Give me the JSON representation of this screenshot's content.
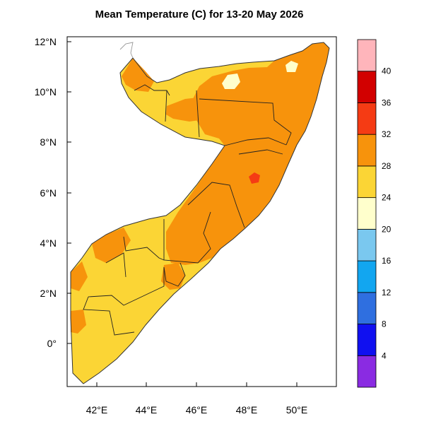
{
  "title": "Mean Temperature (C) for 13-20 May 2026",
  "map": {
    "lon_ticks": [
      "42°E",
      "44°E",
      "46°E",
      "48°E",
      "50°E"
    ],
    "lat_ticks": [
      "12°N",
      "10°N",
      "8°N",
      "6°N",
      "4°N",
      "2°N",
      "0°"
    ],
    "lon_range": [
      41,
      51.5
    ],
    "lat_range": [
      -1.6,
      12.2
    ]
  },
  "colorbar": {
    "bins": [
      {
        "color": "#8a2be2",
        "label": "4"
      },
      {
        "color": "#1010f0",
        "label": "8"
      },
      {
        "color": "#2f6fe0",
        "label": "12"
      },
      {
        "color": "#12a6f0",
        "label": "16"
      },
      {
        "color": "#7ac8ef",
        "label": "20"
      },
      {
        "color": "#ffffcc",
        "label": "24"
      },
      {
        "color": "#fbd535",
        "label": "28"
      },
      {
        "color": "#f7930c",
        "label": "32"
      },
      {
        "color": "#f53b14",
        "label": "36"
      },
      {
        "color": "#d20000",
        "label": "40"
      },
      {
        "color": "#ffb5bb",
        "label": ""
      }
    ]
  },
  "colors": {
    "band_24_28": "#fbd535",
    "band_28_32": "#f7930c",
    "band_32_36": "#f53b14",
    "band_20_24": "#ffffcc"
  }
}
